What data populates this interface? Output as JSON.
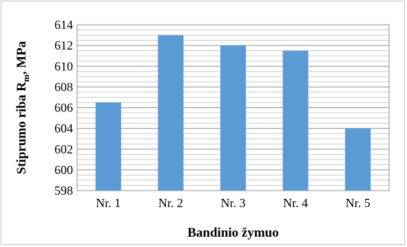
{
  "chart_data": {
    "type": "bar",
    "categories": [
      "Nr. 1",
      "Nr. 2",
      "Nr. 3",
      "Nr. 4",
      "Nr. 5"
    ],
    "values": [
      606.5,
      613,
      612,
      611.5,
      604
    ],
    "xlabel": "Bandinio žymuo",
    "ylabel_main": "Stiprumo riba R",
    "ylabel_sub": "m",
    "ylabel_tail": ", MPa",
    "ylim": [
      598,
      614
    ],
    "yticks": [
      "598",
      "600",
      "602",
      "604",
      "606",
      "608",
      "610",
      "612",
      "614"
    ],
    "grid": true,
    "bar_color": "#5b9bd5",
    "grid_color": "#a6a6a6"
  }
}
